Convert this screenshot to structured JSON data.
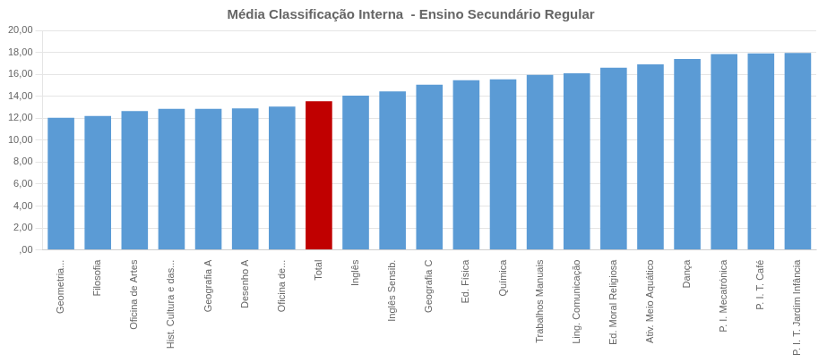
{
  "chart_data": {
    "type": "bar",
    "title": "Média Classificação Interna  - Ensino Secundário Regular",
    "categories": [
      "Geometria...",
      "Filosofia",
      "Oficina de Artes",
      "Hist. Cultura e das...",
      "Geografia A",
      "Desenho A",
      "Oficina de...",
      "Total",
      "Inglês",
      "Inglês Sensib.",
      "Geografia C",
      "Ed. Física",
      "Química",
      "Trabalhos Manuais",
      "Ling. Comunicação",
      "Ed. Moral Religiosa",
      "Ativ. Meio Aquático",
      "Dança",
      "P. I. Mecatrónica",
      "P. I. T. Café",
      "P. I. T. Jardim Infância"
    ],
    "values": [
      12.05,
      12.2,
      12.65,
      12.85,
      12.85,
      12.9,
      13.05,
      13.55,
      14.05,
      14.45,
      15.05,
      15.45,
      15.55,
      15.95,
      16.1,
      16.6,
      16.9,
      17.4,
      17.85,
      17.9,
      17.95
    ],
    "colors": [
      "#5B9BD5",
      "#5B9BD5",
      "#5B9BD5",
      "#5B9BD5",
      "#5B9BD5",
      "#5B9BD5",
      "#5B9BD5",
      "#C00000",
      "#5B9BD5",
      "#5B9BD5",
      "#5B9BD5",
      "#5B9BD5",
      "#5B9BD5",
      "#5B9BD5",
      "#5B9BD5",
      "#5B9BD5",
      "#5B9BD5",
      "#5B9BD5",
      "#5B9BD5",
      "#5B9BD5",
      "#5B9BD5"
    ],
    "ylim": [
      0,
      20
    ],
    "yticks": [
      {
        "value": 0,
        "label": ",00"
      },
      {
        "value": 2,
        "label": "2,00"
      },
      {
        "value": 4,
        "label": "4,00"
      },
      {
        "value": 6,
        "label": "6,00"
      },
      {
        "value": 8,
        "label": "8,00"
      },
      {
        "value": 10,
        "label": "10,00"
      },
      {
        "value": 12,
        "label": "12,00"
      },
      {
        "value": 14,
        "label": "14,00"
      },
      {
        "value": 16,
        "label": "16,00"
      },
      {
        "value": 18,
        "label": "18,00"
      },
      {
        "value": 20,
        "label": "20,00"
      }
    ],
    "grid": true
  }
}
